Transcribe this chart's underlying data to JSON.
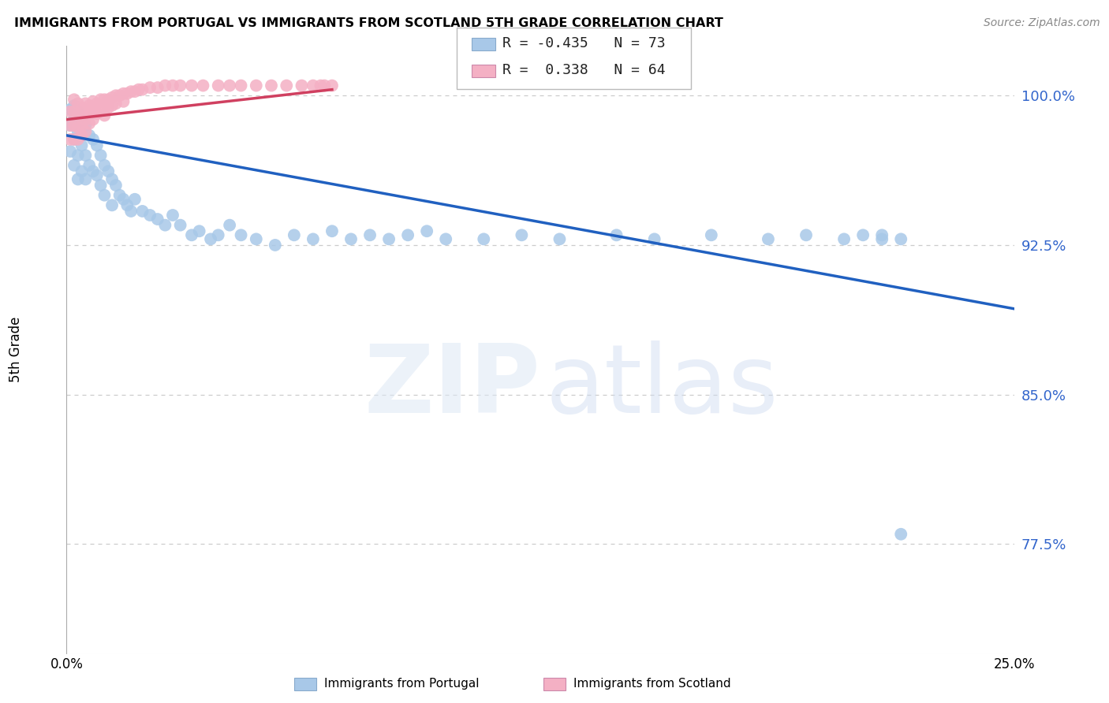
{
  "title": "IMMIGRANTS FROM PORTUGAL VS IMMIGRANTS FROM SCOTLAND 5TH GRADE CORRELATION CHART",
  "source": "Source: ZipAtlas.com",
  "ylabel": "5th Grade",
  "xlim": [
    0.0,
    0.25
  ],
  "ylim": [
    0.72,
    1.025
  ],
  "yticks": [
    0.775,
    0.85,
    0.925,
    1.0
  ],
  "ytick_labels": [
    "77.5%",
    "85.0%",
    "92.5%",
    "100.0%"
  ],
  "R_portugal": -0.435,
  "N_portugal": 73,
  "R_scotland": 0.338,
  "N_scotland": 64,
  "color_portugal": "#a8c8e8",
  "color_scotland": "#f4b0c4",
  "line_color_portugal": "#2060c0",
  "line_color_scotland": "#d04060",
  "background_color": "#ffffff",
  "grid_color": "#cccccc",
  "portugal_scatter_x": [
    0.001,
    0.001,
    0.001,
    0.002,
    0.002,
    0.002,
    0.002,
    0.003,
    0.003,
    0.003,
    0.003,
    0.004,
    0.004,
    0.004,
    0.005,
    0.005,
    0.005,
    0.006,
    0.006,
    0.007,
    0.007,
    0.008,
    0.008,
    0.009,
    0.009,
    0.01,
    0.01,
    0.011,
    0.012,
    0.012,
    0.013,
    0.014,
    0.015,
    0.016,
    0.017,
    0.018,
    0.02,
    0.022,
    0.024,
    0.026,
    0.028,
    0.03,
    0.033,
    0.035,
    0.038,
    0.04,
    0.043,
    0.046,
    0.05,
    0.055,
    0.06,
    0.065,
    0.07,
    0.075,
    0.08,
    0.085,
    0.09,
    0.095,
    0.1,
    0.11,
    0.12,
    0.13,
    0.145,
    0.155,
    0.17,
    0.185,
    0.195,
    0.205,
    0.21,
    0.215,
    0.215,
    0.22,
    0.22
  ],
  "portugal_scatter_y": [
    0.993,
    0.985,
    0.972,
    0.995,
    0.988,
    0.978,
    0.965,
    0.992,
    0.982,
    0.97,
    0.958,
    0.988,
    0.975,
    0.962,
    0.985,
    0.97,
    0.958,
    0.98,
    0.965,
    0.978,
    0.962,
    0.975,
    0.96,
    0.97,
    0.955,
    0.965,
    0.95,
    0.962,
    0.958,
    0.945,
    0.955,
    0.95,
    0.948,
    0.945,
    0.942,
    0.948,
    0.942,
    0.94,
    0.938,
    0.935,
    0.94,
    0.935,
    0.93,
    0.932,
    0.928,
    0.93,
    0.935,
    0.93,
    0.928,
    0.925,
    0.93,
    0.928,
    0.932,
    0.928,
    0.93,
    0.928,
    0.93,
    0.932,
    0.928,
    0.928,
    0.93,
    0.928,
    0.93,
    0.928,
    0.93,
    0.928,
    0.93,
    0.928,
    0.93,
    0.928,
    0.93,
    0.928,
    0.78
  ],
  "scotland_scatter_x": [
    0.001,
    0.001,
    0.001,
    0.002,
    0.002,
    0.002,
    0.002,
    0.003,
    0.003,
    0.003,
    0.003,
    0.004,
    0.004,
    0.004,
    0.004,
    0.005,
    0.005,
    0.005,
    0.005,
    0.006,
    0.006,
    0.006,
    0.007,
    0.007,
    0.007,
    0.008,
    0.008,
    0.009,
    0.009,
    0.01,
    0.01,
    0.01,
    0.011,
    0.011,
    0.012,
    0.012,
    0.013,
    0.013,
    0.014,
    0.015,
    0.015,
    0.016,
    0.017,
    0.018,
    0.019,
    0.02,
    0.022,
    0.024,
    0.026,
    0.028,
    0.03,
    0.033,
    0.036,
    0.04,
    0.043,
    0.046,
    0.05,
    0.054,
    0.058,
    0.062,
    0.065,
    0.067,
    0.068,
    0.07
  ],
  "scotland_scatter_y": [
    0.992,
    0.985,
    0.978,
    0.998,
    0.992,
    0.985,
    0.978,
    0.996,
    0.99,
    0.984,
    0.978,
    0.994,
    0.99,
    0.985,
    0.98,
    0.996,
    0.992,
    0.988,
    0.982,
    0.995,
    0.992,
    0.986,
    0.997,
    0.993,
    0.988,
    0.996,
    0.991,
    0.998,
    0.993,
    0.998,
    0.994,
    0.99,
    0.998,
    0.994,
    0.999,
    0.995,
    1.0,
    0.996,
    1.0,
    1.001,
    0.997,
    1.001,
    1.002,
    1.002,
    1.003,
    1.003,
    1.004,
    1.004,
    1.005,
    1.005,
    1.005,
    1.005,
    1.005,
    1.005,
    1.005,
    1.005,
    1.005,
    1.005,
    1.005,
    1.005,
    1.005,
    1.005,
    1.005,
    1.005
  ],
  "portugal_line_x": [
    0.0,
    0.25
  ],
  "portugal_line_y": [
    0.98,
    0.893
  ],
  "scotland_line_x": [
    0.0,
    0.07
  ],
  "scotland_line_y": [
    0.988,
    1.003
  ]
}
